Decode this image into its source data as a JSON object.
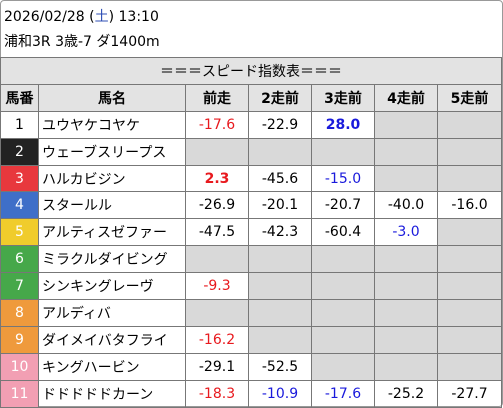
{
  "header": {
    "date_prefix": "2026/02/28 (",
    "weekday": "土",
    "date_suffix": ") 13:10",
    "race": "浦和3R 3歳-7 ダ1400m"
  },
  "table": {
    "title": "＝＝＝スピード指数表＝＝＝",
    "columns": [
      "馬番",
      "馬名",
      "前走",
      "2走前",
      "3走前",
      "4走前",
      "5走前"
    ],
    "rows": [
      {
        "number": 1,
        "name": "ユウヤケコヤケ",
        "post_color": "#ffffff",
        "number_color": "#000000",
        "values": [
          "-17.6",
          "-22.9",
          "28.0",
          null,
          null
        ],
        "value_colors": [
          "#e8191e",
          "#000000",
          "#1a1adc",
          null,
          null
        ],
        "value_bold": [
          2
        ]
      },
      {
        "number": 2,
        "name": "ウェーブスリープス",
        "post_color": "#222222",
        "number_color": "#ffffff",
        "values": [
          null,
          null,
          null,
          null,
          null
        ],
        "value_colors": [
          null,
          null,
          null,
          null,
          null
        ],
        "value_bold": []
      },
      {
        "number": 3,
        "name": "ハルカビジン",
        "post_color": "#e8383d",
        "number_color": "#ffffff",
        "values": [
          "2.3",
          "-45.6",
          "-15.0",
          null,
          null
        ],
        "value_colors": [
          "#e8191e",
          "#000000",
          "#1a1adc",
          null,
          null
        ],
        "value_bold": [
          0
        ]
      },
      {
        "number": 4,
        "name": "スタールル",
        "post_color": "#3f6fc8",
        "number_color": "#ffffff",
        "values": [
          "-26.9",
          "-20.1",
          "-20.7",
          "-40.0",
          "-16.0"
        ],
        "value_colors": [
          "#000000",
          "#000000",
          "#000000",
          "#000000",
          "#000000"
        ],
        "value_bold": []
      },
      {
        "number": 5,
        "name": "アルティスゼファー",
        "post_color": "#f0cc2c",
        "number_color": "#ffffff",
        "values": [
          "-47.5",
          "-42.3",
          "-60.4",
          "-3.0",
          null
        ],
        "value_colors": [
          "#000000",
          "#000000",
          "#000000",
          "#1a1adc",
          null
        ],
        "value_bold": []
      },
      {
        "number": 6,
        "name": "ミラクルダイビング",
        "post_color": "#46a84a",
        "number_color": "#ffffff",
        "values": [
          null,
          null,
          null,
          null,
          null
        ],
        "value_colors": [
          null,
          null,
          null,
          null,
          null
        ],
        "value_bold": []
      },
      {
        "number": 7,
        "name": "シンキングレーヴ",
        "post_color": "#46a84a",
        "number_color": "#ffffff",
        "values": [
          "-9.3",
          null,
          null,
          null,
          null
        ],
        "value_colors": [
          "#e8191e",
          null,
          null,
          null,
          null
        ],
        "value_bold": []
      },
      {
        "number": 8,
        "name": "アルディバ",
        "post_color": "#ef9a3c",
        "number_color": "#ffffff",
        "values": [
          null,
          null,
          null,
          null,
          null
        ],
        "value_colors": [
          null,
          null,
          null,
          null,
          null
        ],
        "value_bold": []
      },
      {
        "number": 9,
        "name": "ダイメイバタフライ",
        "post_color": "#ef9a3c",
        "number_color": "#ffffff",
        "values": [
          "-16.2",
          null,
          null,
          null,
          null
        ],
        "value_colors": [
          "#e8191e",
          null,
          null,
          null,
          null
        ],
        "value_bold": []
      },
      {
        "number": 10,
        "name": "キングハービン",
        "post_color": "#f29fb3",
        "number_color": "#ffffff",
        "values": [
          "-29.1",
          "-52.5",
          null,
          null,
          null
        ],
        "value_colors": [
          "#000000",
          "#000000",
          null,
          null,
          null
        ],
        "value_bold": []
      },
      {
        "number": 11,
        "name": "ドドドドドカーン",
        "post_color": "#f29fb3",
        "number_color": "#ffffff",
        "values": [
          "-18.3",
          "-10.9",
          "-17.6",
          "-25.2",
          "-27.7"
        ],
        "value_colors": [
          "#e8191e",
          "#1a1adc",
          "#1a1adc",
          "#000000",
          "#000000"
        ],
        "value_bold": []
      }
    ]
  }
}
